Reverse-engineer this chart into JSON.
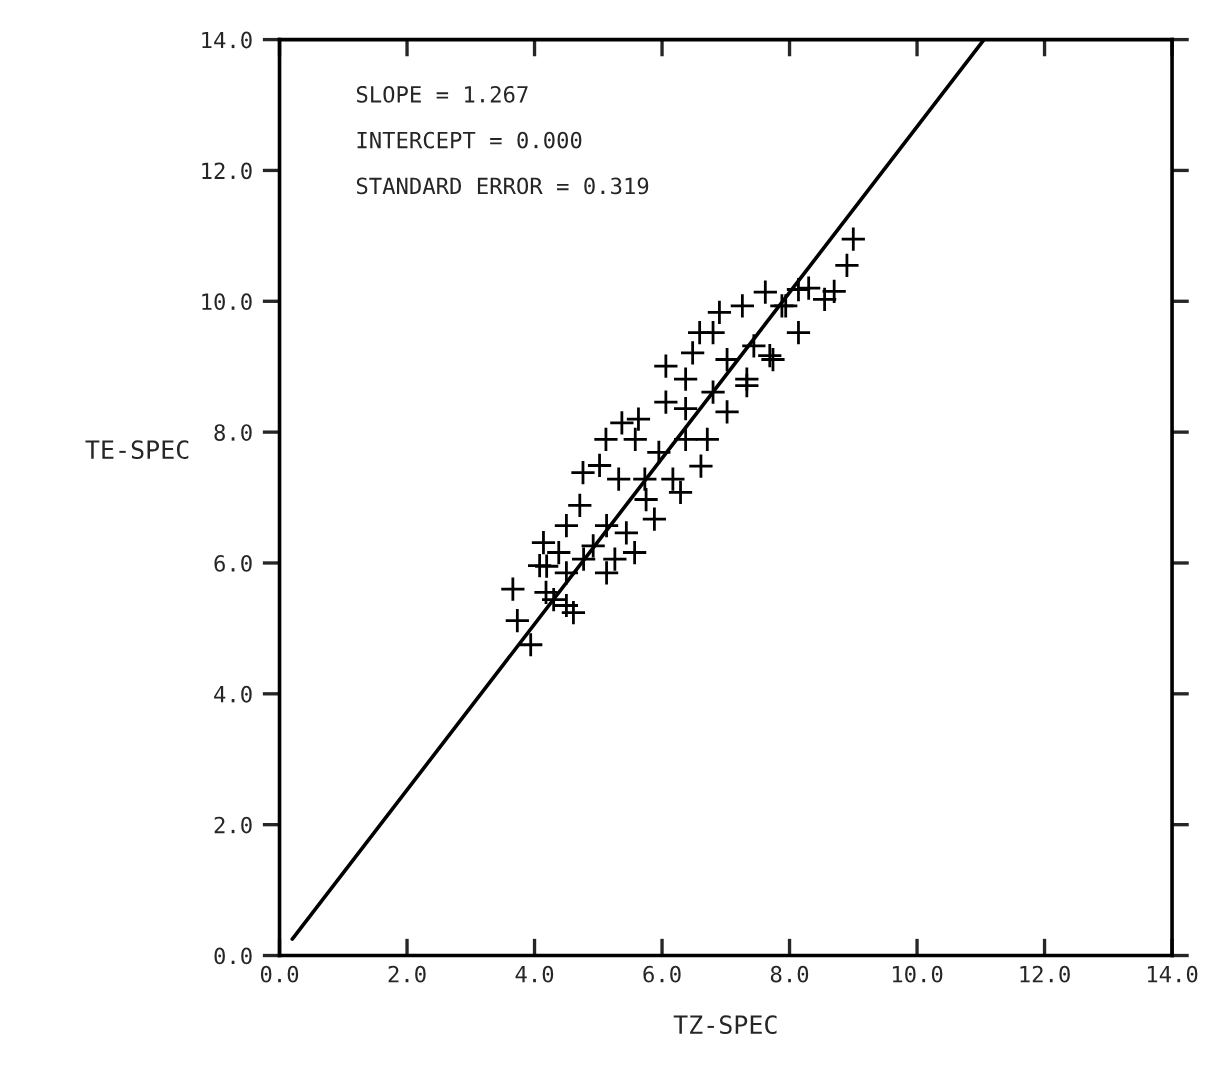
{
  "chart_data": {
    "type": "scatter",
    "xlabel": "TZ-SPEC",
    "ylabel": "TE-SPEC",
    "annotations": [
      "SLOPE = 1.267",
      "INTERCEPT = 0.000",
      "STANDARD ERROR = 0.319"
    ],
    "xlim": [
      0,
      14
    ],
    "ylim": [
      0,
      14
    ],
    "xticks": [
      {
        "value": 0,
        "label": "0.0"
      },
      {
        "value": 2,
        "label": "2.0"
      },
      {
        "value": 4,
        "label": "4.0"
      },
      {
        "value": 6,
        "label": "6.0"
      },
      {
        "value": 8,
        "label": "8.0"
      },
      {
        "value": 10,
        "label": "10.0"
      },
      {
        "value": 12,
        "label": "12.0"
      },
      {
        "value": 14,
        "label": "14.0"
      }
    ],
    "yticks": [
      {
        "value": 0,
        "label": "0.0"
      },
      {
        "value": 2,
        "label": "2.0"
      },
      {
        "value": 4,
        "label": "4.0"
      },
      {
        "value": 6,
        "label": "6.0"
      },
      {
        "value": 8,
        "label": "8.0"
      },
      {
        "value": 10,
        "label": "10.0"
      },
      {
        "value": 12,
        "label": "12.0"
      },
      {
        "value": 14,
        "label": "14.0"
      }
    ],
    "grid": false,
    "legend": false,
    "series": [
      {
        "marker": "cross",
        "color": "#000000",
        "x": [
          3.66,
          3.73,
          3.94,
          4.14,
          4.19,
          4.5,
          4.76,
          5.12,
          5.37,
          5.63,
          5.58,
          5.02,
          5.32,
          4.71,
          4.3,
          4.5,
          4.61,
          5.13,
          4.92,
          5.44,
          5.75,
          6.17,
          5.95,
          6.06,
          6.37,
          6.48,
          6.59,
          6.9,
          7.26,
          7.62,
          7.88,
          8.14,
          8.55,
          8.14,
          7.74,
          7.33,
          7.02,
          6.71,
          6.61,
          6.29,
          5.88,
          5.57,
          5.26,
          4.77,
          4.38,
          4.08,
          4.18,
          4.5,
          5.13,
          5.73,
          6.37,
          6.8,
          7.02,
          7.44,
          7.69,
          7.94,
          6.06,
          6.8,
          6.37,
          7.33,
          8.9,
          9.0,
          8.7,
          8.3
        ],
        "values": [
          5.6,
          5.12,
          4.75,
          6.31,
          5.95,
          6.57,
          7.38,
          7.89,
          8.14,
          8.2,
          7.89,
          7.49,
          7.28,
          6.88,
          5.44,
          5.85,
          5.24,
          5.85,
          6.26,
          6.46,
          6.97,
          7.28,
          7.69,
          8.46,
          8.81,
          9.21,
          9.52,
          9.83,
          9.93,
          10.14,
          9.93,
          10.18,
          10.03,
          9.52,
          9.11,
          8.81,
          8.31,
          7.89,
          7.48,
          7.08,
          6.67,
          6.16,
          6.06,
          6.06,
          6.16,
          5.96,
          5.55,
          5.35,
          6.57,
          7.28,
          7.89,
          8.61,
          9.11,
          9.32,
          9.17,
          9.93,
          9.01,
          9.52,
          8.36,
          8.71,
          10.55,
          10.95,
          10.15,
          10.2
        ]
      },
      {
        "type": "line",
        "marker": "none",
        "line_style": "solid",
        "color": "#000000",
        "x": [
          0.2,
          11.05
        ],
        "values": [
          0.25,
          14.0
        ]
      }
    ]
  }
}
